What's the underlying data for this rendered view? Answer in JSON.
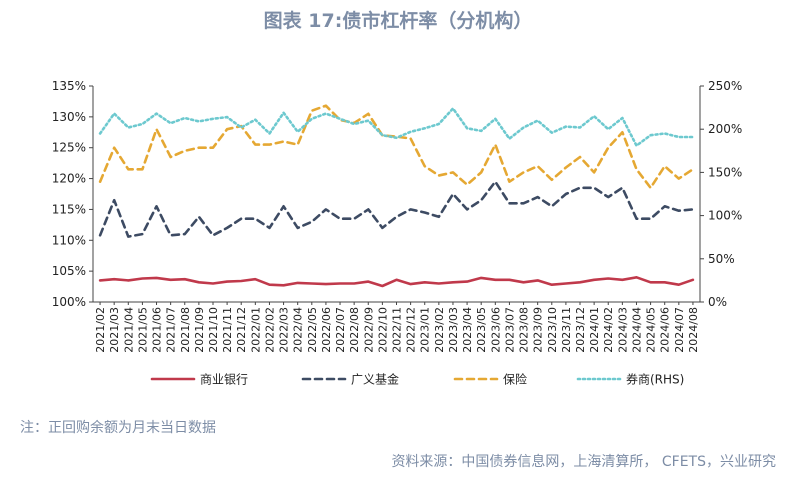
{
  "header": {
    "title": "图表 17:债市杠杆率（分机构）"
  },
  "footer": {
    "note": "注：正回购余额为月末当日数据",
    "source": "资料来源：中国债券信息网，上海清算所， CFETS，兴业研究"
  },
  "chart_data": {
    "type": "line",
    "title": "图表 17:债市杠杆率（分机构）",
    "xlabel": "",
    "ylabel": "",
    "y_left": {
      "min": 100,
      "max": 135,
      "step": 5,
      "suffix": "%"
    },
    "y_right": {
      "min": 0,
      "max": 250,
      "step": 50,
      "suffix": "%",
      "label": ""
    },
    "x": [
      "2021/02",
      "2021/03",
      "2021/04",
      "2021/05",
      "2021/06",
      "2021/07",
      "2021/08",
      "2021/09",
      "2021/10",
      "2021/11",
      "2021/12",
      "2022/01",
      "2022/02",
      "2022/03",
      "2022/04",
      "2022/05",
      "2022/06",
      "2022/07",
      "2022/08",
      "2022/09",
      "2022/10",
      "2022/11",
      "2022/12",
      "2023/01",
      "2023/02",
      "2023/03",
      "2023/04",
      "2023/05",
      "2023/06",
      "2023/07",
      "2023/08",
      "2023/09",
      "2023/10",
      "2023/11",
      "2023/12",
      "2024/01",
      "2024/02",
      "2024/03",
      "2024/04",
      "2024/05",
      "2024/06",
      "2024/07",
      "2024/08"
    ],
    "legend_position": "bottom",
    "grid": false,
    "series": [
      {
        "name": "商业银行",
        "axis": "left",
        "color": "#c0394b",
        "dash": "solid",
        "values": [
          103.5,
          103.7,
          103.5,
          103.8,
          103.9,
          103.6,
          103.7,
          103.2,
          103.0,
          103.3,
          103.4,
          103.7,
          102.8,
          102.7,
          103.1,
          103.0,
          102.9,
          103.0,
          103.0,
          103.3,
          102.6,
          103.6,
          102.9,
          103.2,
          103.0,
          103.2,
          103.3,
          103.9,
          103.6,
          103.6,
          103.2,
          103.5,
          102.8,
          103.0,
          103.2,
          103.6,
          103.8,
          103.6,
          104.0,
          103.2,
          103.2,
          102.8,
          103.6
        ]
      },
      {
        "name": "广义基金",
        "axis": "left",
        "color": "#3d4b63",
        "dash": "dash",
        "values": [
          110.8,
          116.5,
          110.6,
          111.0,
          115.5,
          110.8,
          111.0,
          113.8,
          110.8,
          112.0,
          113.5,
          113.5,
          112.0,
          115.5,
          112.0,
          113.0,
          115.0,
          113.5,
          113.5,
          115.0,
          112.0,
          113.8,
          115.0,
          114.5,
          113.8,
          117.5,
          115.0,
          116.5,
          119.5,
          116.0,
          116.0,
          117.0,
          115.5,
          117.5,
          118.5,
          118.5,
          117.0,
          118.5,
          113.5,
          113.5,
          115.5,
          114.8,
          115.0
        ]
      },
      {
        "name": "保险",
        "axis": "left",
        "color": "#e5a833",
        "dash": "dash",
        "values": [
          119.5,
          125.0,
          121.5,
          121.5,
          128.0,
          123.5,
          124.5,
          125.0,
          125.0,
          128.0,
          128.5,
          125.5,
          125.5,
          126.0,
          125.5,
          131.0,
          131.8,
          129.5,
          129.0,
          130.5,
          127.0,
          126.8,
          126.5,
          122.0,
          120.5,
          121.0,
          119.0,
          121.0,
          125.5,
          119.5,
          121.0,
          122.0,
          119.8,
          121.8,
          123.5,
          121.0,
          125.0,
          127.5,
          121.5,
          118.5,
          122.0,
          120.0,
          121.5
        ]
      },
      {
        "name": "券商(RHS)",
        "axis": "right",
        "color": "#6dc9cf",
        "dash": "dot",
        "values": [
          195,
          218,
          202,
          206,
          218,
          207,
          213,
          209,
          212,
          214,
          202,
          211,
          195,
          219,
          197,
          212,
          218,
          212,
          206,
          210,
          193,
          190,
          197,
          201,
          206,
          224,
          201,
          198,
          212,
          189,
          202,
          210,
          196,
          203,
          202,
          215,
          200,
          213,
          181,
          193,
          195,
          191,
          191
        ]
      }
    ]
  }
}
